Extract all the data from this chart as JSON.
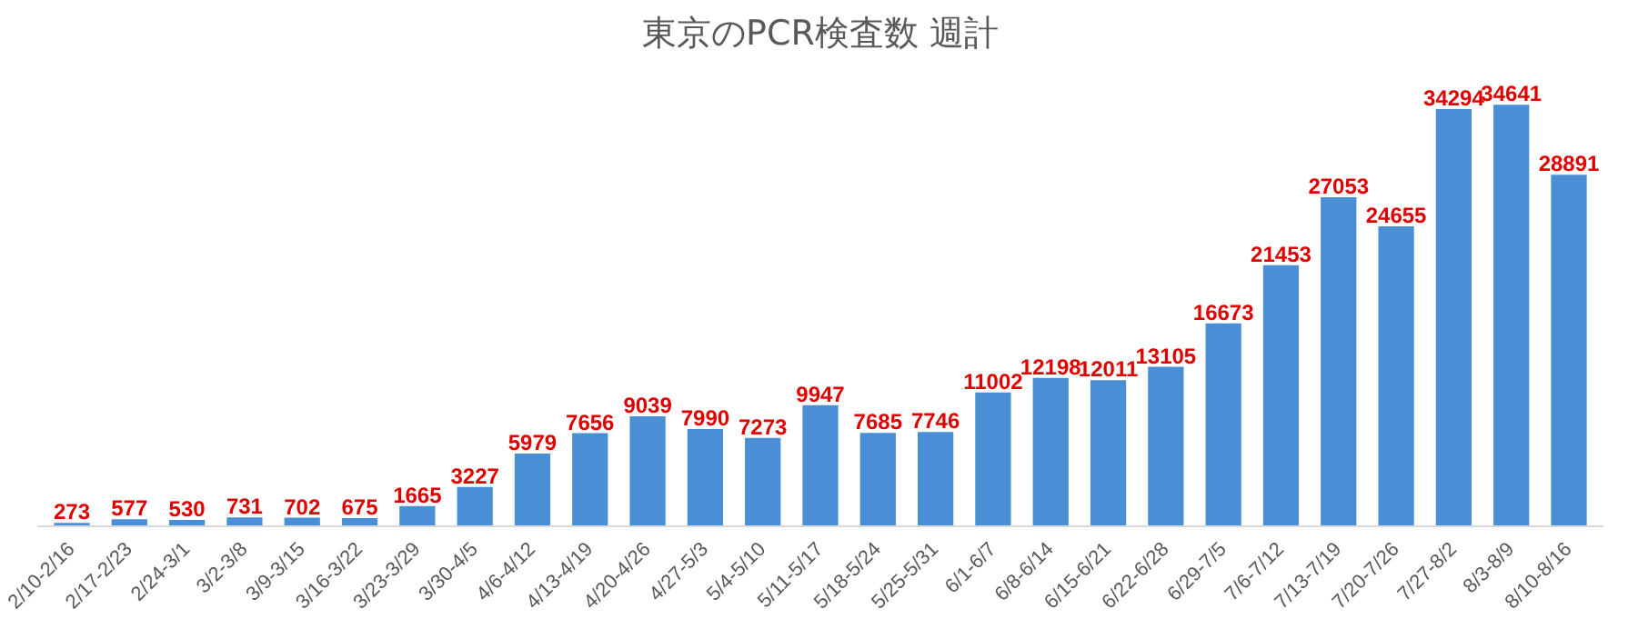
{
  "chart_data": {
    "type": "bar",
    "title": "東京のPCR検査数 週計",
    "categories": [
      "2/10-2/16",
      "2/17-2/23",
      "2/24-3/1",
      "3/2-3/8",
      "3/9-3/15",
      "3/16-3/22",
      "3/23-3/29",
      "3/30-4/5",
      "4/6-4/12",
      "4/13-4/19",
      "4/20-4/26",
      "4/27-5/3",
      "5/4-5/10",
      "5/11-5/17",
      "5/18-5/24",
      "5/25-5/31",
      "6/1-6/7",
      "6/8-6/14",
      "6/15-6/21",
      "6/22-6/28",
      "6/29-7/5",
      "7/6-7/12",
      "7/13-7/19",
      "7/20-7/26",
      "7/27-8/2",
      "8/3-8/9",
      "8/10-8/16"
    ],
    "values": [
      273,
      577,
      530,
      731,
      702,
      675,
      1665,
      3227,
      5979,
      7656,
      9039,
      7990,
      7273,
      9947,
      7685,
      7746,
      11002,
      12198,
      12011,
      13105,
      16673,
      21453,
      27053,
      24655,
      34294,
      34641,
      28891
    ],
    "color": "#4a8fd6",
    "data_labels": true,
    "grid": false,
    "tick_labels": "x"
  }
}
